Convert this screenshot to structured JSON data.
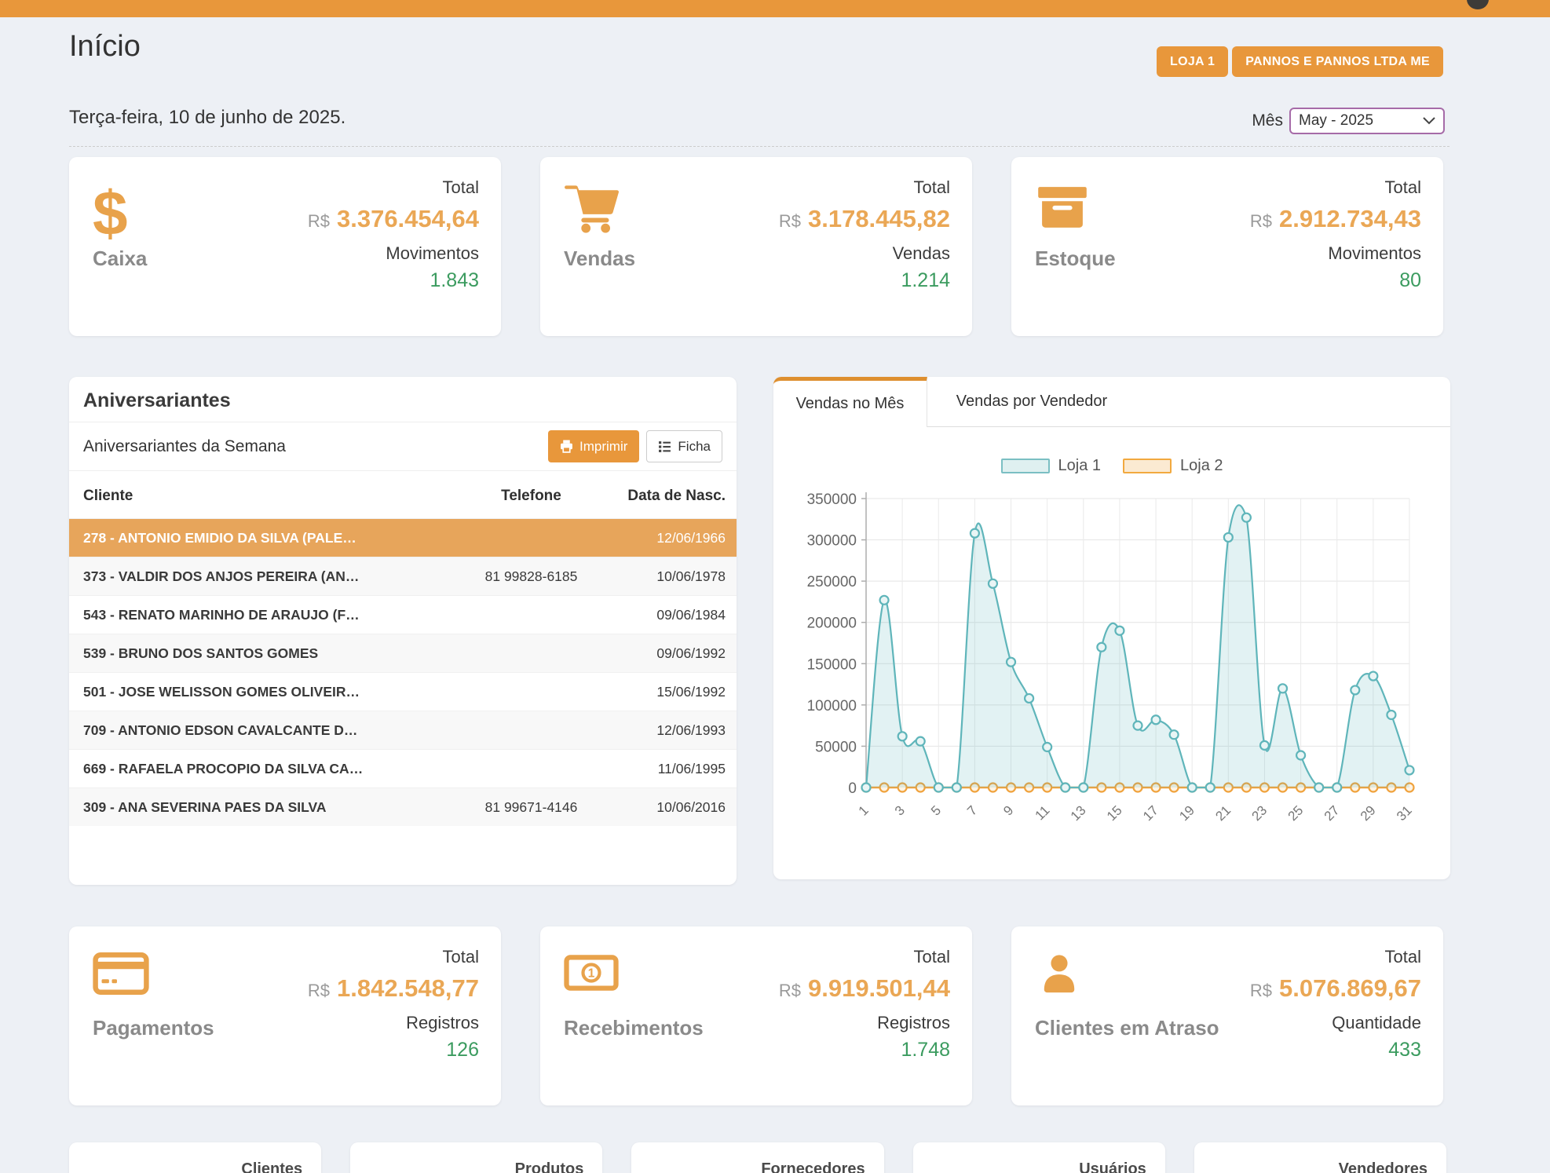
{
  "colors": {
    "accent": "#E8973B",
    "amount": "#EAA755",
    "positive": "#3B9B5F",
    "highlight_row": "#E7A55B",
    "series1": "#5FB5BA",
    "series2": "#F0A23C"
  },
  "header": {
    "title": "Início",
    "store_button": "LOJA 1",
    "company_button": "PANNOS E PANNOS LTDA ME",
    "date": "Terça-feira, 10 de junho de 2025.",
    "month_label": "Mês",
    "month_value": "May - 2025"
  },
  "stats_top": {
    "caixa": {
      "label": "Caixa",
      "total_label": "Total",
      "currency": "R$",
      "total": "3.376.454,64",
      "count_label": "Movimentos",
      "count": "1.843"
    },
    "vendas": {
      "label": "Vendas",
      "total_label": "Total",
      "currency": "R$",
      "total": "3.178.445,82",
      "count_label": "Vendas",
      "count": "1.214"
    },
    "estoque": {
      "label": "Estoque",
      "total_label": "Total",
      "currency": "R$",
      "total": "2.912.734,43",
      "count_label": "Movimentos",
      "count": "80"
    }
  },
  "birthdays": {
    "title": "Aniversariantes",
    "subtitle": "Aniversariantes da Semana",
    "print_button": "Imprimir",
    "ficha_button": "Ficha",
    "columns": [
      "Cliente",
      "Telefone",
      "Data de Nasc."
    ],
    "rows": [
      {
        "client": "278 - ANTONIO EMIDIO DA SILVA (PALE…",
        "phone": "",
        "birth": "12/06/1966",
        "highlight": true
      },
      {
        "client": "373 - VALDIR DOS ANJOS PEREIRA (AN…",
        "phone": "81 99828-6185",
        "birth": "10/06/1978"
      },
      {
        "client": "543 - RENATO MARINHO DE ARAUJO (F…",
        "phone": "",
        "birth": "09/06/1984"
      },
      {
        "client": "539 - BRUNO DOS SANTOS GOMES",
        "phone": "",
        "birth": "09/06/1992"
      },
      {
        "client": "501 - JOSE WELISSON GOMES OLIVEIR…",
        "phone": "",
        "birth": "15/06/1992"
      },
      {
        "client": "709 - ANTONIO EDSON CAVALCANTE D…",
        "phone": "",
        "birth": "12/06/1993"
      },
      {
        "client": "669 - RAFAELA PROCOPIO DA SILVA CA…",
        "phone": "",
        "birth": "11/06/1995"
      },
      {
        "client": "309 - ANA SEVERINA PAES DA SILVA",
        "phone": "81 99671-4146",
        "birth": "10/06/2016"
      }
    ]
  },
  "chart_panel": {
    "tab_active": "Vendas no Mês",
    "tab_inactive": "Vendas por Vendedor"
  },
  "chart_data": {
    "type": "area",
    "x": [
      1,
      2,
      3,
      4,
      5,
      6,
      7,
      8,
      9,
      10,
      11,
      12,
      13,
      14,
      15,
      16,
      17,
      18,
      19,
      20,
      21,
      22,
      23,
      24,
      25,
      26,
      27,
      28,
      29,
      30,
      31
    ],
    "series": [
      {
        "name": "Loja 1",
        "color": "#5FB5BA",
        "fill": "#E9F5F5",
        "values": [
          0,
          227000,
          62000,
          56000,
          0,
          0,
          308000,
          247000,
          152000,
          108000,
          49000,
          0,
          0,
          170000,
          190000,
          75000,
          82000,
          64000,
          0,
          0,
          303000,
          327000,
          51000,
          120000,
          39000,
          0,
          0,
          118000,
          135000,
          88000,
          21000
        ]
      },
      {
        "name": "Loja 2",
        "color": "#F0A23C",
        "fill": "#FDF3E3",
        "values": [
          0,
          0,
          0,
          0,
          0,
          0,
          0,
          0,
          0,
          0,
          0,
          0,
          0,
          0,
          0,
          0,
          0,
          0,
          0,
          0,
          0,
          0,
          0,
          0,
          0,
          0,
          0,
          0,
          0,
          0,
          0
        ]
      }
    ],
    "ylim": [
      0,
      350000
    ],
    "yticks": [
      0,
      50000,
      100000,
      150000,
      200000,
      250000,
      300000,
      350000
    ],
    "xticks": [
      1,
      3,
      5,
      7,
      9,
      11,
      13,
      15,
      17,
      19,
      21,
      23,
      25,
      27,
      29,
      31
    ],
    "grid": true,
    "legend_position": "top",
    "title": "",
    "xlabel": "",
    "ylabel": ""
  },
  "stats_bottom": {
    "pagamentos": {
      "label": "Pagamentos",
      "total_label": "Total",
      "currency": "R$",
      "total": "1.842.548,77",
      "count_label": "Registros",
      "count": "126"
    },
    "recebimentos": {
      "label": "Recebimentos",
      "total_label": "Total",
      "currency": "R$",
      "total": "9.919.501,44",
      "count_label": "Registros",
      "count": "1.748"
    },
    "clientes_atraso": {
      "label": "Clientes em Atraso",
      "total_label": "Total",
      "currency": "R$",
      "total": "5.076.869,67",
      "count_label": "Quantidade",
      "count": "433"
    }
  },
  "bottom_cards": [
    {
      "label": "Clientes"
    },
    {
      "label": "Produtos"
    },
    {
      "label": "Fornecedores"
    },
    {
      "label": "Usuários"
    },
    {
      "label": "Vendedores"
    }
  ]
}
